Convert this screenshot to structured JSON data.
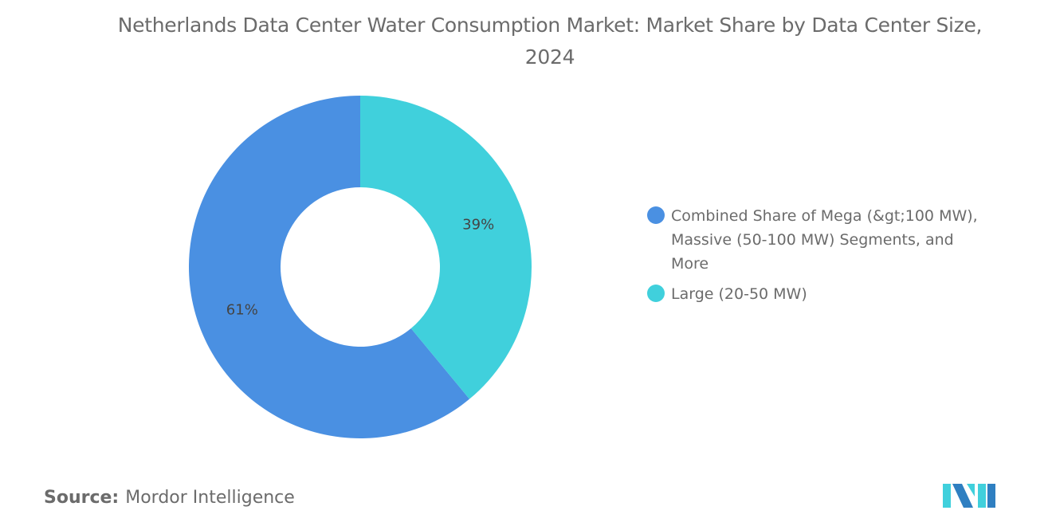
{
  "chart_data": {
    "type": "pie",
    "variant": "donut",
    "title": "Netherlands Data Center Water Consumption Market: Market Share by Data Center Size, 2024",
    "categories": [
      "Combined Share of Mega (&gt;100 MW), Massive (50-100 MW) Segments, and More",
      "Large (20-50 MW)"
    ],
    "values": [
      61,
      39
    ],
    "data_labels": [
      "61%",
      "39%"
    ],
    "colors": [
      "#4a90e2",
      "#40d0dc"
    ],
    "legend_position": "right"
  },
  "source": {
    "label": "Source:",
    "value": "Mordor Intelligence"
  },
  "logo": {
    "name": "mordor-intelligence-logo",
    "colors": [
      "#2f7fc1",
      "#40d0dc"
    ]
  }
}
